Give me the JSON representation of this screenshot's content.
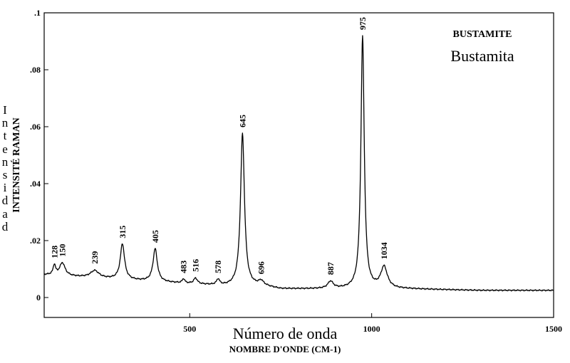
{
  "chart_data": {
    "type": "line",
    "title": "BUSTAMITE",
    "subtitle": "Bustamita",
    "xlabel": "NOMBRE D'ONDE (CM-1)",
    "xlabel_es": "Número de onda",
    "ylabel": "INTENSITÉ RAMAN",
    "ylabel_es": "Intensidad",
    "xlim": [
      100,
      1500
    ],
    "ylim": [
      -0.007,
      0.1
    ],
    "x_ticks": [
      500,
      1000,
      1500
    ],
    "x_tick_labels": [
      "500",
      "1000",
      "1500"
    ],
    "y_ticks": [
      0,
      0.02,
      0.04,
      0.06,
      0.08,
      0.1
    ],
    "y_tick_labels": [
      "0",
      ".02",
      ".04",
      ".06",
      ".08",
      ".1"
    ],
    "grid": false,
    "baseline": {
      "x": [
        100,
        600,
        700,
        750,
        900,
        1100,
        1300,
        1500
      ],
      "y": [
        0.008,
        0.004,
        0.004,
        0.003,
        0.003,
        0.003,
        0.0025,
        0.0025
      ]
    },
    "peaks": [
      {
        "x": 128,
        "height": 0.0035,
        "label": "128"
      },
      {
        "x": 150,
        "height": 0.0045,
        "label": "150"
      },
      {
        "x": 239,
        "height": 0.0025,
        "label": "239"
      },
      {
        "x": 315,
        "height": 0.0125,
        "label": "315"
      },
      {
        "x": 405,
        "height": 0.0115,
        "label": "405"
      },
      {
        "x": 483,
        "height": 0.0015,
        "label": "483"
      },
      {
        "x": 516,
        "height": 0.002,
        "label": "516"
      },
      {
        "x": 578,
        "height": 0.002,
        "label": "578"
      },
      {
        "x": 645,
        "height": 0.0535,
        "label": "645"
      },
      {
        "x": 696,
        "height": 0.0015,
        "label": "696"
      },
      {
        "x": 887,
        "height": 0.0025,
        "label": "887"
      },
      {
        "x": 975,
        "height": 0.0885,
        "label": "975"
      },
      {
        "x": 1034,
        "height": 0.0075,
        "label": "1034"
      }
    ]
  }
}
